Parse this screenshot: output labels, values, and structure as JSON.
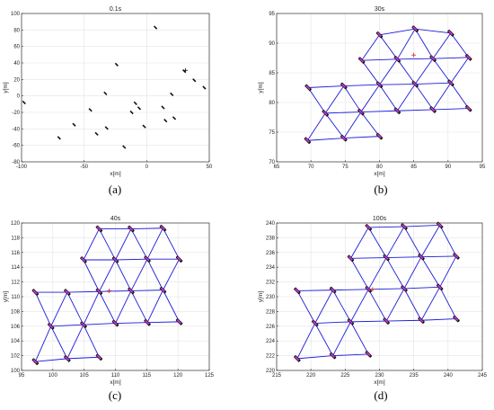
{
  "colors": {
    "link": "#1a1adb",
    "agent_body": "#111111",
    "agent_head": "#cc33cc",
    "target": "#cc2222",
    "grid": "#e3e3e3",
    "axis": "#333333"
  },
  "chart_data": [
    {
      "type": "scatter",
      "panel": "a",
      "caption": "(a)",
      "title": "0.1s",
      "xlabel": "x[m]",
      "ylabel": "y[m]",
      "xlim": [
        -100,
        50
      ],
      "ylim": [
        -80,
        100
      ],
      "xticks": [
        -100,
        -50,
        0,
        50
      ],
      "yticks": [
        -80,
        -60,
        -40,
        -20,
        0,
        20,
        40,
        60,
        80,
        100
      ],
      "grid": true,
      "target": [
        31,
        31
      ],
      "agents": [
        [
          -98,
          -8
        ],
        [
          -70,
          -51
        ],
        [
          -58,
          -35
        ],
        [
          -45,
          -17
        ],
        [
          -40,
          -46
        ],
        [
          -33,
          3
        ],
        [
          -32,
          -39
        ],
        [
          -24,
          38
        ],
        [
          -18,
          -62
        ],
        [
          -12,
          -20
        ],
        [
          -9,
          -9
        ],
        [
          -6,
          -15
        ],
        [
          -2,
          -37
        ],
        [
          7,
          83
        ],
        [
          13,
          -14
        ],
        [
          15,
          -30
        ],
        [
          20,
          2
        ],
        [
          22,
          -27
        ],
        [
          30,
          30
        ],
        [
          38,
          19
        ],
        [
          46,
          10
        ]
      ],
      "links": []
    },
    {
      "type": "scatter",
      "panel": "b",
      "caption": "(b)",
      "title": "30s",
      "xlabel": "x[m]",
      "ylabel": "y[m]",
      "xlim": [
        65,
        95
      ],
      "ylim": [
        70,
        95
      ],
      "xticks": [
        65,
        70,
        75,
        80,
        85,
        90,
        95
      ],
      "yticks": [
        70,
        75,
        80,
        85,
        90,
        95
      ],
      "grid": true,
      "target": [
        85,
        88
      ],
      "agents": [
        [
          69.5,
          73.6
        ],
        [
          74.8,
          74.0
        ],
        [
          80.0,
          74.3
        ],
        [
          72.1,
          78.2
        ],
        [
          77.3,
          78.4
        ],
        [
          82.6,
          78.6
        ],
        [
          87.8,
          78.8
        ],
        [
          93.0,
          79.0
        ],
        [
          69.6,
          82.5
        ],
        [
          74.8,
          82.8
        ],
        [
          80.0,
          83.0
        ],
        [
          85.2,
          83.1
        ],
        [
          90.4,
          83.3
        ],
        [
          77.4,
          87.1
        ],
        [
          82.6,
          87.3
        ],
        [
          87.8,
          87.4
        ],
        [
          93.0,
          87.6
        ],
        [
          80.0,
          91.4
        ],
        [
          85.2,
          92.4
        ],
        [
          90.4,
          91.7
        ]
      ],
      "links": [
        [
          0,
          1
        ],
        [
          1,
          2
        ],
        [
          0,
          3
        ],
        [
          1,
          3
        ],
        [
          1,
          4
        ],
        [
          2,
          4
        ],
        [
          3,
          4
        ],
        [
          4,
          5
        ],
        [
          5,
          6
        ],
        [
          6,
          7
        ],
        [
          3,
          8
        ],
        [
          3,
          9
        ],
        [
          4,
          9
        ],
        [
          4,
          10
        ],
        [
          5,
          10
        ],
        [
          5,
          11
        ],
        [
          6,
          11
        ],
        [
          6,
          12
        ],
        [
          7,
          12
        ],
        [
          8,
          9
        ],
        [
          9,
          10
        ],
        [
          10,
          11
        ],
        [
          11,
          12
        ],
        [
          10,
          13
        ],
        [
          10,
          14
        ],
        [
          11,
          14
        ],
        [
          11,
          15
        ],
        [
          12,
          15
        ],
        [
          12,
          16
        ],
        [
          13,
          14
        ],
        [
          14,
          15
        ],
        [
          15,
          16
        ],
        [
          13,
          17
        ],
        [
          14,
          17
        ],
        [
          14,
          18
        ],
        [
          15,
          18
        ],
        [
          15,
          19
        ],
        [
          16,
          19
        ],
        [
          17,
          18
        ],
        [
          18,
          19
        ]
      ]
    },
    {
      "type": "scatter",
      "panel": "c",
      "caption": "(c)",
      "title": "40s",
      "xlabel": "x[m]",
      "ylabel": "y[m]",
      "xlim": [
        95,
        125
      ],
      "ylim": [
        100,
        120
      ],
      "xticks": [
        95,
        100,
        105,
        110,
        115,
        120,
        125
      ],
      "yticks": [
        100,
        102,
        104,
        106,
        108,
        110,
        112,
        114,
        116,
        118,
        120
      ],
      "grid": true,
      "target": [
        109,
        110.8
      ],
      "agents": [
        [
          97.2,
          101.2
        ],
        [
          102.3,
          101.6
        ],
        [
          107.4,
          101.8
        ],
        [
          99.7,
          106.0
        ],
        [
          104.9,
          106.2
        ],
        [
          110.0,
          106.4
        ],
        [
          115.1,
          106.5
        ],
        [
          120.2,
          106.6
        ],
        [
          97.2,
          110.6
        ],
        [
          102.3,
          110.6
        ],
        [
          107.4,
          110.7
        ],
        [
          112.5,
          110.8
        ],
        [
          117.6,
          110.9
        ],
        [
          104.9,
          115.0
        ],
        [
          110.0,
          115.0
        ],
        [
          115.1,
          115.1
        ],
        [
          120.2,
          115.1
        ],
        [
          107.4,
          119.2
        ],
        [
          112.5,
          119.2
        ],
        [
          117.6,
          119.3
        ]
      ],
      "links": [
        [
          0,
          1
        ],
        [
          1,
          2
        ],
        [
          0,
          3
        ],
        [
          1,
          3
        ],
        [
          1,
          4
        ],
        [
          2,
          4
        ],
        [
          3,
          4
        ],
        [
          4,
          5
        ],
        [
          5,
          6
        ],
        [
          6,
          7
        ],
        [
          3,
          8
        ],
        [
          3,
          9
        ],
        [
          4,
          9
        ],
        [
          4,
          10
        ],
        [
          5,
          10
        ],
        [
          5,
          11
        ],
        [
          6,
          11
        ],
        [
          6,
          12
        ],
        [
          7,
          12
        ],
        [
          8,
          9
        ],
        [
          9,
          10
        ],
        [
          10,
          11
        ],
        [
          11,
          12
        ],
        [
          10,
          13
        ],
        [
          10,
          14
        ],
        [
          11,
          14
        ],
        [
          11,
          15
        ],
        [
          12,
          15
        ],
        [
          12,
          16
        ],
        [
          13,
          14
        ],
        [
          14,
          15
        ],
        [
          15,
          16
        ],
        [
          13,
          17
        ],
        [
          14,
          17
        ],
        [
          14,
          18
        ],
        [
          15,
          18
        ],
        [
          15,
          19
        ],
        [
          16,
          19
        ],
        [
          17,
          18
        ],
        [
          18,
          19
        ]
      ]
    },
    {
      "type": "scatter",
      "panel": "d",
      "caption": "(d)",
      "title": "100s",
      "xlabel": "x[m]",
      "ylabel": "y[m]",
      "xlim": [
        215,
        245
      ],
      "ylim": [
        220,
        240
      ],
      "xticks": [
        215,
        220,
        225,
        230,
        235,
        240,
        245
      ],
      "yticks": [
        220,
        222,
        224,
        226,
        228,
        230,
        232,
        234,
        236,
        238,
        240
      ],
      "grid": true,
      "target": [
        229,
        231
      ],
      "agents": [
        [
          218.0,
          221.6
        ],
        [
          223.2,
          222.0
        ],
        [
          228.4,
          222.2
        ],
        [
          220.6,
          226.4
        ],
        [
          225.8,
          226.6
        ],
        [
          231.0,
          226.7
        ],
        [
          236.1,
          226.8
        ],
        [
          241.2,
          227.0
        ],
        [
          218.0,
          230.8
        ],
        [
          223.2,
          230.9
        ],
        [
          228.4,
          231.0
        ],
        [
          233.6,
          231.1
        ],
        [
          238.8,
          231.3
        ],
        [
          225.8,
          235.2
        ],
        [
          231.0,
          235.3
        ],
        [
          236.1,
          235.4
        ],
        [
          241.2,
          235.5
        ],
        [
          228.4,
          239.4
        ],
        [
          233.6,
          239.5
        ],
        [
          238.8,
          239.7
        ]
      ],
      "links": [
        [
          0,
          1
        ],
        [
          1,
          2
        ],
        [
          0,
          3
        ],
        [
          1,
          3
        ],
        [
          1,
          4
        ],
        [
          2,
          4
        ],
        [
          3,
          4
        ],
        [
          4,
          5
        ],
        [
          5,
          6
        ],
        [
          6,
          7
        ],
        [
          3,
          8
        ],
        [
          3,
          9
        ],
        [
          4,
          9
        ],
        [
          4,
          10
        ],
        [
          5,
          10
        ],
        [
          5,
          11
        ],
        [
          6,
          11
        ],
        [
          6,
          12
        ],
        [
          7,
          12
        ],
        [
          8,
          9
        ],
        [
          9,
          10
        ],
        [
          10,
          11
        ],
        [
          11,
          12
        ],
        [
          10,
          13
        ],
        [
          10,
          14
        ],
        [
          11,
          14
        ],
        [
          11,
          15
        ],
        [
          12,
          15
        ],
        [
          12,
          16
        ],
        [
          13,
          14
        ],
        [
          14,
          15
        ],
        [
          15,
          16
        ],
        [
          13,
          17
        ],
        [
          14,
          17
        ],
        [
          14,
          18
        ],
        [
          15,
          18
        ],
        [
          15,
          19
        ],
        [
          16,
          19
        ],
        [
          17,
          18
        ],
        [
          18,
          19
        ]
      ]
    }
  ]
}
